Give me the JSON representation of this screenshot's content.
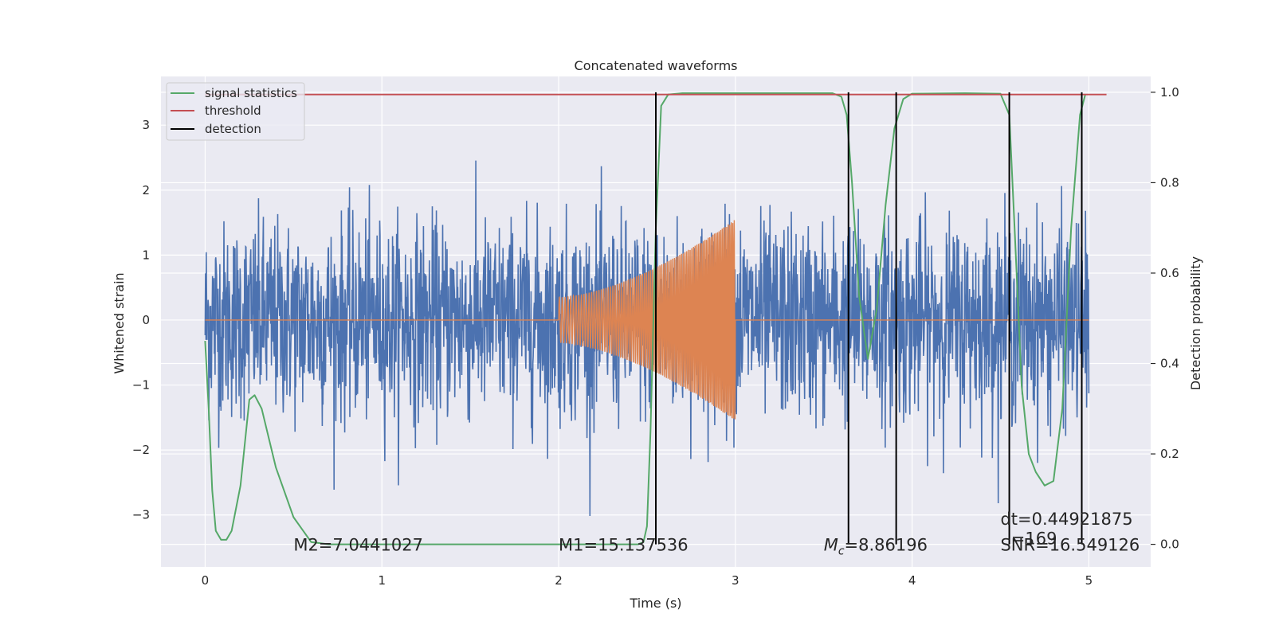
{
  "chart_data": {
    "type": "line",
    "title": "Concatenated waveforms",
    "xlabel": "Time (s)",
    "ylabel_left": "Whitened strain",
    "ylabel_right": "Detection probability",
    "xlim": [
      -0.25,
      5.35
    ],
    "ylim_left": [
      -3.8,
      3.75
    ],
    "ylim_right": [
      -0.05,
      1.035
    ],
    "x_ticks": [
      0,
      1,
      2,
      3,
      4,
      5
    ],
    "y_ticks_left": [
      -3,
      -2,
      -1,
      0,
      1,
      2,
      3
    ],
    "y_ticks_right": [
      0.0,
      0.2,
      0.4,
      0.6,
      0.8,
      1.0
    ],
    "x_tick_labels": [
      "0",
      "1",
      "2",
      "3",
      "4",
      "5"
    ],
    "y_tick_labels_left": [
      "−3",
      "−2",
      "−1",
      "0",
      "1",
      "2",
      "3"
    ],
    "y_tick_labels_right": [
      "0.0",
      "0.2",
      "0.4",
      "0.6",
      "0.8",
      "1.0"
    ],
    "grid": true,
    "legend_position": "top-left",
    "legend": [
      {
        "label": "signal statistics",
        "color": "#55a868"
      },
      {
        "label": "threshold",
        "color": "#c44e52"
      },
      {
        "label": "detection",
        "color": "#000000"
      }
    ],
    "colors": {
      "background": "#eaeaf2",
      "noise": "#4c72b0",
      "waveform": "#dd8452",
      "signal_statistics": "#55a868",
      "threshold": "#c44e52",
      "detection": "#000000"
    },
    "noise_series": {
      "x_range": [
        0,
        5
      ],
      "axis": "left",
      "approx_amplitude": 0.75
    },
    "waveform_series": {
      "x_range": [
        2.0,
        3.0
      ],
      "axis": "left",
      "start_amplitude": 0.35,
      "end_amplitude": 1.55
    },
    "threshold": {
      "value": 0.995,
      "x_range": [
        0,
        5.1
      ],
      "axis": "right"
    },
    "detections": [
      2.55,
      3.64,
      3.91,
      4.55,
      4.96
    ],
    "signal_statistics": {
      "axis": "right",
      "x": [
        0.0,
        0.02,
        0.04,
        0.06,
        0.09,
        0.12,
        0.15,
        0.2,
        0.25,
        0.28,
        0.32,
        0.4,
        0.5,
        0.6,
        0.7,
        1.0,
        1.5,
        2.0,
        2.3,
        2.45,
        2.48,
        2.5,
        2.52,
        2.55,
        2.58,
        2.62,
        2.7,
        3.0,
        3.3,
        3.55,
        3.6,
        3.63,
        3.66,
        3.7,
        3.75,
        3.8,
        3.85,
        3.9,
        3.95,
        4.0,
        4.3,
        4.5,
        4.55,
        4.58,
        4.62,
        4.66,
        4.7,
        4.75,
        4.8,
        4.85,
        4.9,
        4.95,
        4.98
      ],
      "y": [
        0.45,
        0.3,
        0.12,
        0.03,
        0.01,
        0.01,
        0.03,
        0.13,
        0.32,
        0.33,
        0.3,
        0.17,
        0.06,
        0.005,
        0.0,
        0.0,
        0.0,
        0.0,
        0.0,
        0.0,
        0.005,
        0.04,
        0.25,
        0.7,
        0.97,
        0.995,
        0.998,
        0.998,
        0.998,
        0.998,
        0.99,
        0.95,
        0.8,
        0.55,
        0.41,
        0.52,
        0.75,
        0.92,
        0.985,
        0.997,
        0.998,
        0.997,
        0.95,
        0.7,
        0.35,
        0.2,
        0.16,
        0.13,
        0.14,
        0.3,
        0.7,
        0.95,
        0.995
      ]
    },
    "annotations": [
      {
        "text": "M2=7.0441027",
        "x": 0.5,
        "y": -3.55
      },
      {
        "text": "M1=15.137536",
        "x": 2.0,
        "y": -3.55
      },
      {
        "text_base": "M",
        "text_sub": "c",
        "text_rest": "=8.86196",
        "x": 3.5,
        "y": -3.55
      },
      {
        "text": "dt=0.44921875",
        "x": 4.5,
        "y": -3.15
      },
      {
        "text": "=169",
        "x": 4.56,
        "y": -3.45
      },
      {
        "text": "SNR=16.549126",
        "x": 4.5,
        "y": -3.55
      }
    ]
  }
}
